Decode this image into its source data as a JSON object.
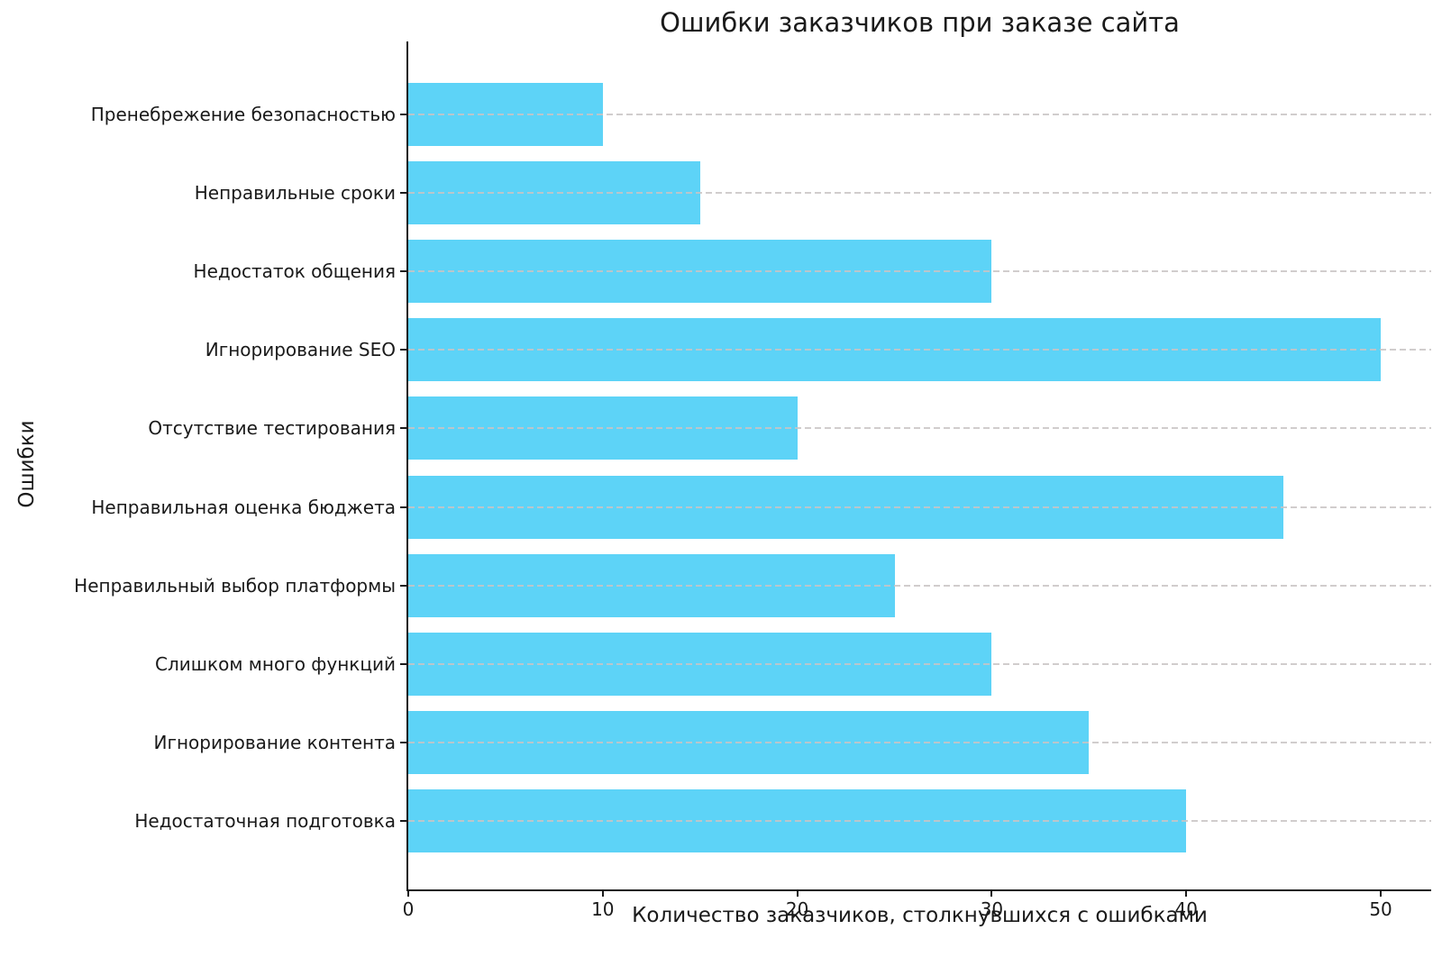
{
  "chart_data": {
    "type": "bar",
    "orientation": "horizontal",
    "title": "Ошибки заказчиков при заказе сайта",
    "xlabel": "Количество заказчиков, столкнувшихся с ошибками",
    "ylabel": "Ошибки",
    "categories": [
      "Пренебрежение безопасностью",
      "Неправильные сроки",
      "Недостаток общения",
      "Игнорирование SEO",
      "Отсутствие тестирования",
      "Неправильная оценка бюджета",
      "Неправильный выбор платформы",
      "Слишком много функций",
      "Игнорирование контента",
      "Недостаточная подготовка"
    ],
    "values": [
      10,
      15,
      30,
      50,
      20,
      45,
      25,
      30,
      35,
      40
    ],
    "xticks": [
      0,
      10,
      20,
      30,
      40,
      50
    ],
    "xlim": [
      0,
      52.5
    ],
    "grid": true,
    "grid_style": "dashed",
    "legend": "none",
    "bar_color": "#5dd3f7",
    "grid_color": "#c9c4c4",
    "axis_color": "#1a1a1a",
    "text_color": "#1a1a1a",
    "background_color": "#ffffff"
  }
}
